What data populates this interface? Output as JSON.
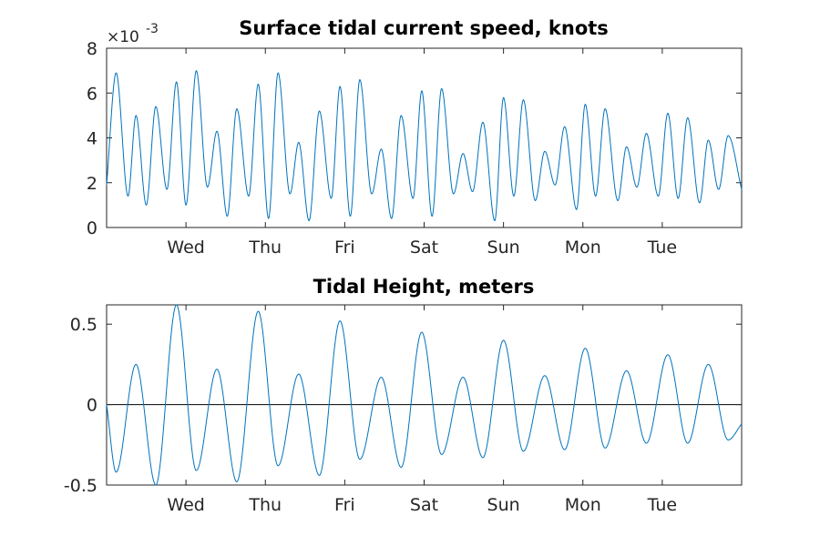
{
  "chart_data": [
    {
      "type": "line",
      "title": "Surface tidal current speed, knots",
      "xlabel": "",
      "ylabel": "",
      "y_multiplier_label": "×10",
      "y_multiplier_exponent": "-3",
      "x_domain_days": [
        0,
        8
      ],
      "xtick_labels": [
        "Wed",
        "Thu",
        "Fri",
        "Sat",
        "Sun",
        "Mon",
        "Tue"
      ],
      "xtick_days": [
        1,
        2,
        3,
        4,
        5,
        6,
        7
      ],
      "ylim": [
        0,
        0.008
      ],
      "yticks": [
        0,
        0.002,
        0.004,
        0.006,
        0.008
      ],
      "ytick_labels": [
        "0",
        "2",
        "4",
        "6",
        "8"
      ],
      "grid": false,
      "series": [
        {
          "color": "#0072BD",
          "x": [
            0.0,
            0.12,
            0.27,
            0.37,
            0.5,
            0.62,
            0.76,
            0.88,
            1.0,
            1.13,
            1.27,
            1.39,
            1.52,
            1.64,
            1.79,
            1.91,
            2.04,
            2.16,
            2.31,
            2.42,
            2.55,
            2.68,
            2.83,
            2.94,
            3.07,
            3.19,
            3.34,
            3.46,
            3.59,
            3.71,
            3.86,
            3.97,
            4.1,
            4.22,
            4.37,
            4.49,
            4.61,
            4.74,
            4.89,
            5.0,
            5.13,
            5.25,
            5.4,
            5.52,
            5.65,
            5.77,
            5.92,
            6.03,
            6.16,
            6.28,
            6.44,
            6.55,
            6.68,
            6.8,
            6.95,
            7.07,
            7.2,
            7.32,
            7.47,
            7.58,
            7.71,
            7.83,
            8.0
          ],
          "y": [
            0.0019,
            0.0069,
            0.0014,
            0.005,
            0.001,
            0.0054,
            0.0017,
            0.0065,
            0.001,
            0.007,
            0.0018,
            0.0043,
            0.0005,
            0.0053,
            0.0014,
            0.0064,
            0.0004,
            0.0069,
            0.0015,
            0.0038,
            0.0003,
            0.0052,
            0.0013,
            0.0063,
            0.0005,
            0.0066,
            0.0015,
            0.0035,
            0.0004,
            0.005,
            0.0013,
            0.0061,
            0.0005,
            0.0062,
            0.0015,
            0.0033,
            0.0016,
            0.0047,
            0.0003,
            0.0058,
            0.0014,
            0.0057,
            0.0012,
            0.0034,
            0.0019,
            0.0045,
            0.0008,
            0.0055,
            0.0014,
            0.0053,
            0.0012,
            0.0036,
            0.0018,
            0.0042,
            0.0014,
            0.0051,
            0.0013,
            0.0049,
            0.0011,
            0.0039,
            0.0017,
            0.0041,
            0.0017
          ]
        }
      ]
    },
    {
      "type": "line",
      "title": "Tidal Height, meters",
      "xlabel": "",
      "ylabel": "",
      "x_domain_days": [
        0,
        8
      ],
      "xtick_labels": [
        "Wed",
        "Thu",
        "Fri",
        "Sat",
        "Sun",
        "Mon",
        "Tue"
      ],
      "xtick_days": [
        1,
        2,
        3,
        4,
        5,
        6,
        7
      ],
      "ylim": [
        -0.5,
        0.62
      ],
      "yticks": [
        -0.5,
        0,
        0.5
      ],
      "ytick_labels": [
        "-0.5",
        "0",
        "0.5"
      ],
      "zero_line": true,
      "grid": false,
      "series": [
        {
          "color": "#0072BD",
          "x": [
            0.0,
            0.12,
            0.37,
            0.62,
            0.88,
            1.13,
            1.39,
            1.64,
            1.91,
            2.16,
            2.42,
            2.68,
            2.94,
            3.19,
            3.46,
            3.71,
            3.97,
            4.22,
            4.49,
            4.74,
            5.0,
            5.25,
            5.52,
            5.77,
            6.03,
            6.28,
            6.55,
            6.8,
            7.07,
            7.32,
            7.58,
            7.83,
            8.0
          ],
          "y": [
            0.0,
            -0.42,
            0.25,
            -0.5,
            0.62,
            -0.41,
            0.22,
            -0.48,
            0.58,
            -0.38,
            0.19,
            -0.44,
            0.52,
            -0.34,
            0.17,
            -0.39,
            0.45,
            -0.31,
            0.17,
            -0.33,
            0.4,
            -0.29,
            0.18,
            -0.28,
            0.35,
            -0.27,
            0.21,
            -0.24,
            0.31,
            -0.24,
            0.25,
            -0.22,
            -0.12
          ]
        }
      ]
    }
  ]
}
